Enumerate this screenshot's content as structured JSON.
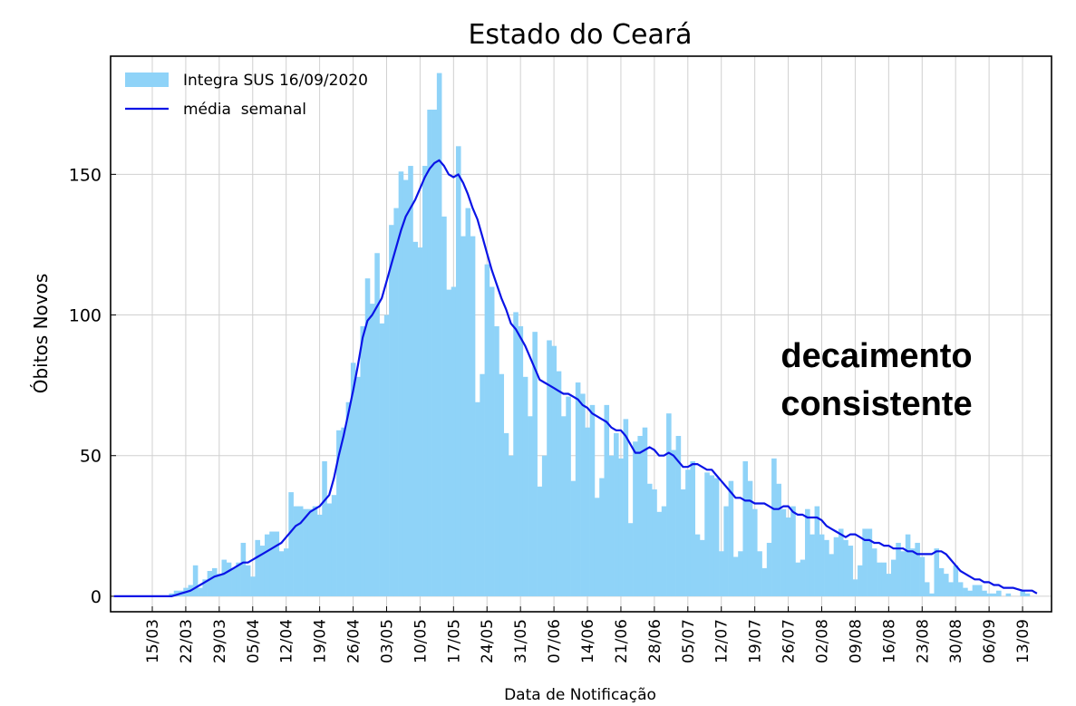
{
  "chart_data": {
    "type": "bar",
    "title": "Estado do Ceará",
    "xlabel": "Data de Notificação",
    "ylabel": "Óbitos Novos",
    "annotation": [
      "decaimento",
      "consistente"
    ],
    "categories": [
      "07/03",
      "08/03",
      "09/03",
      "10/03",
      "11/03",
      "12/03",
      "13/03",
      "14/03",
      "15/03",
      "16/03",
      "17/03",
      "18/03",
      "19/03",
      "20/03",
      "21/03",
      "22/03",
      "23/03",
      "24/03",
      "25/03",
      "26/03",
      "27/03",
      "28/03",
      "29/03",
      "30/03",
      "31/03",
      "01/04",
      "02/04",
      "03/04",
      "04/04",
      "05/04",
      "06/04",
      "07/04",
      "08/04",
      "09/04",
      "10/04",
      "11/04",
      "12/04",
      "13/04",
      "14/04",
      "15/04",
      "16/04",
      "17/04",
      "18/04",
      "19/04",
      "20/04",
      "21/04",
      "22/04",
      "23/04",
      "24/04",
      "25/04",
      "26/04",
      "27/04",
      "28/04",
      "29/04",
      "30/04",
      "01/05",
      "02/05",
      "03/05",
      "04/05",
      "05/05",
      "06/05",
      "07/05",
      "08/05",
      "09/05",
      "10/05",
      "11/05",
      "12/05",
      "13/05",
      "14/05",
      "15/05",
      "16/05",
      "17/05",
      "18/05",
      "19/05",
      "20/05",
      "21/05",
      "22/05",
      "23/05",
      "24/05",
      "25/05",
      "26/05",
      "27/05",
      "28/05",
      "29/05",
      "30/05",
      "31/05",
      "01/06",
      "02/06",
      "03/06",
      "04/06",
      "05/06",
      "06/06",
      "07/06",
      "08/06",
      "09/06",
      "10/06",
      "11/06",
      "12/06",
      "13/06",
      "14/06",
      "15/06",
      "16/06",
      "17/06",
      "18/06",
      "19/06",
      "20/06",
      "21/06",
      "22/06",
      "23/06",
      "24/06",
      "25/06",
      "26/06",
      "27/06",
      "28/06",
      "29/06",
      "30/06",
      "01/07",
      "02/07",
      "03/07",
      "04/07",
      "05/07",
      "06/07",
      "07/07",
      "08/07",
      "09/07",
      "10/07",
      "11/07",
      "12/07",
      "13/07",
      "14/07",
      "15/07",
      "16/07",
      "17/07",
      "18/07",
      "19/07",
      "20/07",
      "21/07",
      "22/07",
      "23/07",
      "24/07",
      "25/07",
      "26/07",
      "27/07",
      "28/07",
      "29/07",
      "30/07",
      "31/07",
      "01/08",
      "02/08",
      "03/08",
      "04/08",
      "05/08",
      "06/08",
      "07/08",
      "08/08",
      "09/08",
      "10/08",
      "11/08",
      "12/08",
      "13/08",
      "14/08",
      "15/08",
      "16/08",
      "17/08",
      "18/08",
      "19/08",
      "20/08",
      "21/08",
      "22/08",
      "23/08",
      "24/08",
      "25/08",
      "26/08",
      "27/08",
      "28/08",
      "29/08",
      "30/08",
      "31/08",
      "01/09",
      "02/09",
      "03/09",
      "04/09",
      "05/09",
      "06/09",
      "07/09",
      "08/09",
      "09/09",
      "10/09",
      "11/09",
      "12/09",
      "13/09",
      "14/09",
      "15/09",
      "16/09"
    ],
    "series": [
      {
        "name": "Integra SUS 16/09/2020",
        "type": "bar",
        "color": "#8fd3f8",
        "values": [
          0,
          0,
          0,
          0,
          0,
          0,
          0,
          0,
          0,
          0,
          0,
          0,
          1,
          2,
          2,
          3,
          4,
          11,
          3,
          6,
          9,
          10,
          8,
          13,
          12,
          10,
          12,
          19,
          11,
          7,
          20,
          18,
          22,
          23,
          23,
          16,
          17,
          37,
          32,
          32,
          31,
          31,
          32,
          29,
          48,
          33,
          36,
          59,
          60,
          69,
          83,
          78,
          96,
          113,
          104,
          122,
          97,
          100,
          132,
          138,
          151,
          148,
          153,
          126,
          124,
          153,
          173,
          173,
          186,
          135,
          109,
          110,
          160,
          128,
          138,
          128,
          69,
          79,
          118,
          110,
          96,
          79,
          58,
          50,
          101,
          96,
          78,
          64,
          94,
          39,
          50,
          91,
          89,
          80,
          64,
          71,
          41,
          76,
          72,
          60,
          68,
          35,
          42,
          68,
          50,
          58,
          49,
          63,
          26,
          55,
          57,
          60,
          40,
          38,
          30,
          32,
          65,
          52,
          57,
          38,
          45,
          48,
          22,
          20,
          44,
          43,
          42,
          16,
          32,
          41,
          14,
          16,
          48,
          41,
          31,
          16,
          10,
          19,
          49,
          40,
          31,
          28,
          32,
          12,
          13,
          31,
          22,
          32,
          22,
          20,
          15,
          21,
          24,
          20,
          18,
          6,
          11,
          24,
          24,
          17,
          12,
          12,
          8,
          13,
          19,
          16,
          22,
          17,
          19,
          14,
          5,
          1,
          17,
          10,
          8,
          5,
          11,
          5,
          3,
          2,
          4,
          4,
          2,
          1,
          1,
          2,
          0,
          1,
          0,
          0,
          2,
          1,
          0,
          0
        ]
      },
      {
        "name": "média  semanal",
        "type": "line",
        "color": "#0a14e6",
        "values": [
          0,
          0,
          0,
          0,
          0,
          0,
          0,
          0,
          0,
          0,
          0,
          0,
          0,
          0.5,
          1,
          1.5,
          2,
          3,
          4,
          5,
          6,
          7,
          7.5,
          8,
          9,
          10,
          11,
          12,
          12,
          13,
          14,
          15,
          16,
          17,
          18,
          19,
          21,
          23,
          25,
          26,
          28,
          30,
          31,
          32,
          34,
          36,
          42,
          50,
          57,
          65,
          73,
          82,
          92,
          98,
          100,
          103,
          106,
          112,
          118,
          124,
          130,
          135,
          138,
          141,
          145,
          149,
          152,
          154,
          155,
          153,
          150,
          149,
          150,
          147,
          143,
          138,
          134,
          128,
          122,
          116,
          111,
          106,
          102,
          97,
          95,
          92,
          89,
          85,
          81,
          77,
          76,
          75,
          74,
          73,
          72,
          72,
          71,
          70,
          68,
          67,
          65,
          64,
          63,
          62,
          60,
          59,
          59,
          57,
          54,
          51,
          51,
          52,
          53,
          52,
          50,
          50,
          51,
          50,
          48,
          46,
          46,
          47,
          47,
          46,
          45,
          45,
          43,
          41,
          39,
          37,
          35,
          35,
          34,
          34,
          33,
          33,
          33,
          32,
          31,
          31,
          32,
          32,
          30,
          29,
          29,
          28,
          28,
          28,
          27,
          25,
          24,
          23,
          22,
          21,
          22,
          22,
          21,
          20,
          20,
          19,
          19,
          18,
          18,
          17,
          17,
          17,
          16,
          16,
          15,
          15,
          15,
          15,
          16,
          16,
          15,
          13,
          11,
          9,
          8,
          7,
          6,
          6,
          5,
          5,
          4,
          4,
          3,
          3,
          3,
          2.5,
          2,
          2,
          2,
          1
        ]
      }
    ],
    "xticks": [
      "15/03",
      "22/03",
      "29/03",
      "05/04",
      "12/04",
      "19/04",
      "26/04",
      "03/05",
      "10/05",
      "17/05",
      "24/05",
      "31/05",
      "07/06",
      "14/06",
      "21/06",
      "28/06",
      "05/07",
      "12/07",
      "19/07",
      "26/07",
      "02/08",
      "09/08",
      "16/08",
      "23/08",
      "30/08",
      "06/09",
      "13/09"
    ],
    "ylim": [
      -5.5,
      192
    ],
    "yticks": [
      0,
      50,
      100,
      150
    ],
    "grid": true,
    "legend": "upper left"
  }
}
